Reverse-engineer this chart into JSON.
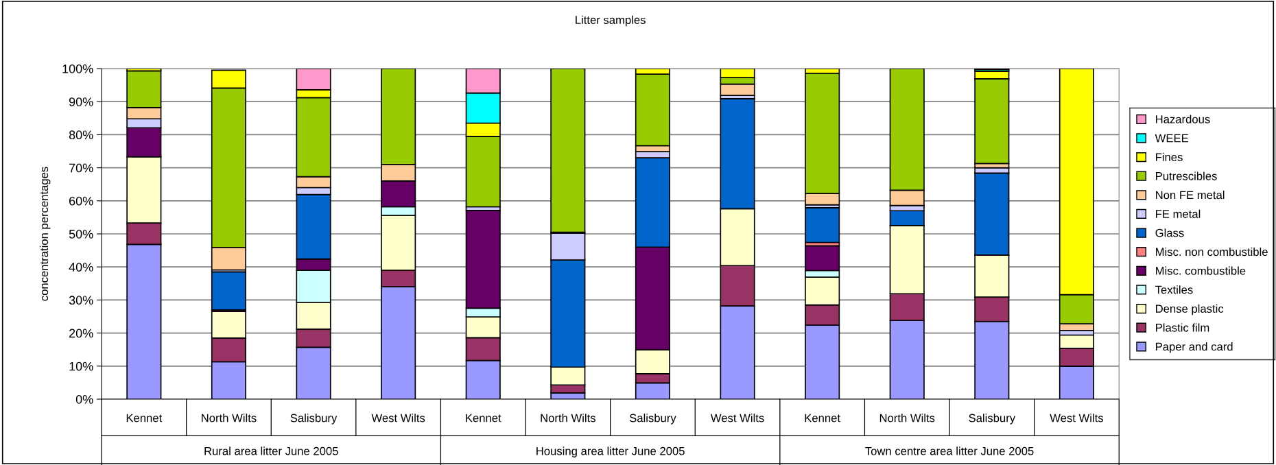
{
  "chart_data": {
    "type": "bar",
    "stacked": true,
    "title": "Litter samples",
    "ylabel": "concentration percentages",
    "categories": [
      "Kennet",
      "North Wilts",
      "Salisbury",
      "West Wilts",
      "Kennet",
      "North Wilts",
      "Salisbury",
      "West Wilts",
      "Kennet",
      "North Wilts",
      "Salisbury",
      "West Wilts"
    ],
    "annotations": [
      "Rural area litter June 2005",
      "Housing area litter June 2005",
      "Town centre area litter June 2005"
    ],
    "ylim": [
      0,
      100
    ],
    "yticks": [
      {
        "value": 0,
        "label": "0%"
      },
      {
        "value": 10,
        "label": "10%"
      },
      {
        "value": 20,
        "label": "20%"
      },
      {
        "value": 30,
        "label": "30%"
      },
      {
        "value": 40,
        "label": "40%"
      },
      {
        "value": 50,
        "label": "50%"
      },
      {
        "value": 60,
        "label": "60%"
      },
      {
        "value": 70,
        "label": "70%"
      },
      {
        "value": 80,
        "label": "80%"
      },
      {
        "value": 90,
        "label": "90%"
      },
      {
        "value": 100,
        "label": "100%"
      }
    ],
    "grid": "y",
    "legend": "right",
    "series": [
      {
        "name": "Paper and card",
        "color": "#9999ff",
        "values": [
          46.8,
          11.3,
          15.7,
          34.0,
          11.7,
          1.9,
          4.9,
          28.2,
          22.4,
          23.8,
          23.5,
          10.0
        ]
      },
      {
        "name": "Plastic film",
        "color": "#993366",
        "values": [
          6.5,
          7.2,
          5.5,
          5.0,
          6.9,
          2.4,
          2.8,
          12.2,
          6.1,
          8.1,
          7.4,
          5.4
        ]
      },
      {
        "name": "Dense plastic",
        "color": "#ffffcc",
        "values": [
          20.0,
          8.0,
          8.1,
          16.6,
          6.3,
          5.4,
          7.2,
          17.2,
          8.4,
          20.6,
          12.7,
          4.0
        ]
      },
      {
        "name": "Textiles",
        "color": "#ccffff",
        "values": [
          0,
          null,
          9.7,
          2.6,
          2.6,
          0,
          0,
          0,
          2.0,
          0,
          0,
          0
        ]
      },
      {
        "name": "Misc. combustible",
        "color": "#660066",
        "values": [
          8.8,
          0.5,
          3.4,
          7.8,
          29.6,
          0,
          31.1,
          0,
          7.5,
          0,
          0,
          0
        ]
      },
      {
        "name": "Misc. non combustible",
        "color": "#ff8080",
        "values": [
          0,
          0,
          0,
          0,
          0,
          0,
          0,
          0,
          1.0,
          0,
          0,
          0
        ]
      },
      {
        "name": "Glass",
        "color": "#0066cc",
        "values": [
          0,
          11.5,
          19.5,
          0,
          null,
          32.4,
          27.0,
          33.3,
          10.5,
          4.5,
          24.8,
          0
        ]
      },
      {
        "name": "FE metal",
        "color": "#ccccff",
        "values": [
          2.7,
          0.6,
          2.1,
          0,
          1.1,
          8.1,
          1.9,
          1.0,
          0.9,
          1.6,
          1.6,
          1.4
        ]
      },
      {
        "name": "Non FE metal",
        "color": "#ffcc99",
        "values": [
          3.4,
          6.8,
          3.3,
          5.0,
          0,
          0.3,
          1.8,
          3.4,
          3.4,
          4.6,
          1.3,
          2.0
        ]
      },
      {
        "name": "Putrescibles",
        "color": "#99cc00",
        "values": [
          11.1,
          48.2,
          23.9,
          29.0,
          21.3,
          49.5,
          21.6,
          2.0,
          36.4,
          36.8,
          25.6,
          8.8
        ]
      },
      {
        "name": "Fines",
        "color": "#ffff00",
        "values": [
          0.7,
          5.4,
          2.4,
          0,
          4.0,
          0,
          1.7,
          2.7,
          1.4,
          0,
          2.3,
          68.4
        ]
      },
      {
        "name": "WEEE",
        "color": "#00ffff",
        "values": [
          0,
          0,
          0,
          0,
          9.1,
          0,
          0,
          0,
          0,
          0,
          0.5,
          0
        ]
      },
      {
        "name": "Hazardous",
        "color": "#ff99cc",
        "values": [
          0,
          0,
          6.4,
          0,
          7.4,
          0,
          0,
          0,
          0,
          0,
          0.3,
          0
        ]
      }
    ]
  }
}
